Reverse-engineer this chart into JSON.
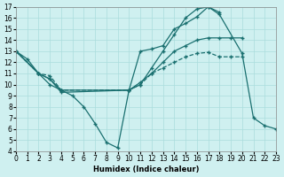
{
  "xlabel": "Humidex (Indice chaleur)",
  "bg_color": "#cff0f0",
  "grid_color": "#aadddd",
  "line_color": "#1a7070",
  "xlim": [
    0,
    23
  ],
  "ylim": [
    4,
    17
  ],
  "xticks": [
    0,
    1,
    2,
    3,
    4,
    5,
    6,
    7,
    8,
    9,
    10,
    11,
    12,
    13,
    14,
    15,
    16,
    17,
    18,
    19,
    20,
    21,
    22,
    23
  ],
  "yticks": [
    4,
    5,
    6,
    7,
    8,
    9,
    10,
    11,
    12,
    13,
    14,
    15,
    16,
    17
  ],
  "lineA_x": [
    0,
    1,
    2,
    3,
    4,
    5,
    6,
    7,
    8,
    9,
    10,
    11,
    12,
    13,
    14,
    15,
    16,
    17,
    18
  ],
  "lineA_y": [
    13,
    12.3,
    11,
    10,
    9.5,
    9,
    8,
    6.5,
    4.8,
    4.3,
    9.5,
    13,
    13.2,
    13.5,
    15,
    15.5,
    16.1,
    17,
    16.5
  ],
  "lineB_x": [
    0,
    2,
    3,
    4,
    10,
    11,
    12,
    13,
    14,
    15,
    16,
    17,
    18,
    19,
    20
  ],
  "lineB_y": [
    13,
    11,
    10.5,
    9.3,
    9.5,
    10.2,
    11,
    12,
    13,
    13.5,
    14,
    14.2,
    14.2,
    14.2,
    14.2
  ],
  "lineC_x": [
    0,
    2,
    3,
    4,
    10,
    11,
    12,
    13,
    14,
    15,
    16,
    17,
    18,
    19,
    20
  ],
  "lineC_y": [
    13,
    11,
    10.8,
    9.5,
    9.5,
    10,
    11,
    11.5,
    12,
    12.5,
    12.8,
    12.9,
    12.5,
    12.5,
    12.5
  ],
  "lineD_x": [
    0,
    2,
    3,
    4,
    10,
    11,
    12,
    13,
    14,
    15,
    16,
    17,
    18,
    20,
    21,
    22,
    23
  ],
  "lineD_y": [
    13,
    11,
    10.5,
    9.5,
    9.5,
    10,
    11.5,
    13,
    14.5,
    16,
    16.8,
    17,
    16.3,
    12.8,
    7,
    6.3,
    6
  ]
}
